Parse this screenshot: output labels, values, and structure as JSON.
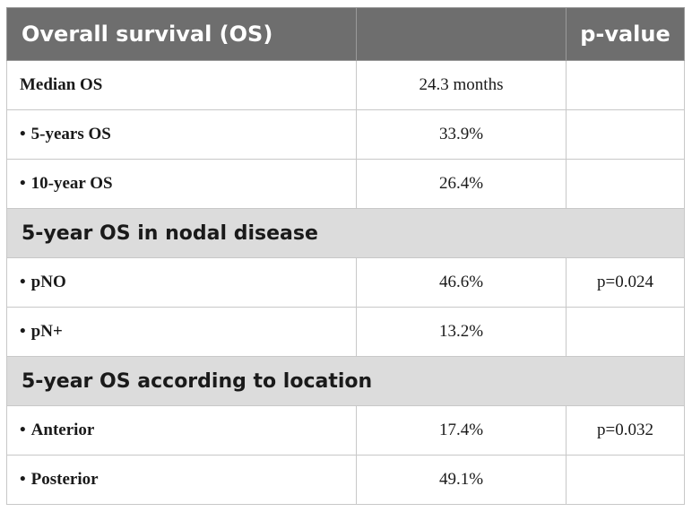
{
  "header": {
    "col1": "Overall survival (OS)",
    "col2": "",
    "col3": "p-value"
  },
  "rows": [
    {
      "kind": "row",
      "label": "Median OS",
      "bullet": false,
      "value": "24.3 months",
      "p": ""
    },
    {
      "kind": "row",
      "label": "5-years OS",
      "bullet": true,
      "value": "33.9%",
      "p": ""
    },
    {
      "kind": "row",
      "label": "10-year OS",
      "bullet": true,
      "value": "26.4%",
      "p": ""
    },
    {
      "kind": "section",
      "label": "5-year OS in nodal disease"
    },
    {
      "kind": "row",
      "label": "pNO",
      "bullet": true,
      "value": "46.6%",
      "p": "p=0.024"
    },
    {
      "kind": "row",
      "label": "pN+",
      "bullet": true,
      "value": "13.2%",
      "p": ""
    },
    {
      "kind": "section",
      "label": "5-year OS according to location"
    },
    {
      "kind": "row",
      "label": "Anterior",
      "bullet": true,
      "value": "17.4%",
      "p": "p=0.032"
    },
    {
      "kind": "row",
      "label": "Posterior",
      "bullet": true,
      "value": "49.1%",
      "p": ""
    }
  ],
  "bullet_char": "•"
}
